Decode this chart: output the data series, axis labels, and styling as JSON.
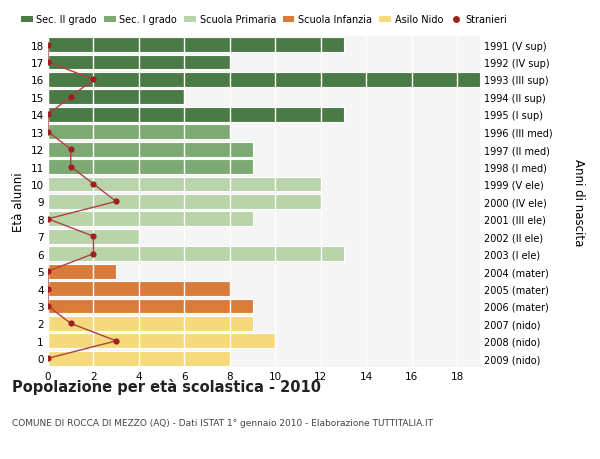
{
  "ages": [
    18,
    17,
    16,
    15,
    14,
    13,
    12,
    11,
    10,
    9,
    8,
    7,
    6,
    5,
    4,
    3,
    2,
    1,
    0
  ],
  "bar_values": [
    13,
    8,
    19,
    6,
    13,
    8,
    9,
    9,
    12,
    12,
    9,
    4,
    13,
    3,
    8,
    9,
    9,
    10,
    8
  ],
  "bar_colors": [
    "#4a7a45",
    "#4a7a45",
    "#4a7a45",
    "#4a7a45",
    "#4a7a45",
    "#7daa72",
    "#7daa72",
    "#7daa72",
    "#b8d4a8",
    "#b8d4a8",
    "#b8d4a8",
    "#b8d4a8",
    "#b8d4a8",
    "#d97c3a",
    "#d97c3a",
    "#d97c3a",
    "#f5d97a",
    "#f5d97a",
    "#f5d97a"
  ],
  "stranieri_values": [
    0,
    0,
    2,
    1,
    0,
    0,
    1,
    1,
    2,
    3,
    0,
    2,
    2,
    0,
    0,
    0,
    1,
    3,
    0
  ],
  "right_labels": [
    "1991 (V sup)",
    "1992 (IV sup)",
    "1993 (III sup)",
    "1994 (II sup)",
    "1995 (I sup)",
    "1996 (III med)",
    "1997 (II med)",
    "1998 (I med)",
    "1999 (V ele)",
    "2000 (IV ele)",
    "2001 (III ele)",
    "2002 (II ele)",
    "2003 (I ele)",
    "2004 (mater)",
    "2005 (mater)",
    "2006 (mater)",
    "2007 (nido)",
    "2008 (nido)",
    "2009 (nido)"
  ],
  "legend_labels": [
    "Sec. II grado",
    "Sec. I grado",
    "Scuola Primaria",
    "Scuola Infanzia",
    "Asilo Nido",
    "Stranieri"
  ],
  "legend_colors": [
    "#4a7a45",
    "#7daa72",
    "#b8d4a8",
    "#d97c3a",
    "#f5d97a",
    "#9e2020"
  ],
  "ylabel": "Età alunni",
  "right_ylabel": "Anni di nascita",
  "title": "Popolazione per età scolastica - 2010",
  "subtitle": "COMUNE DI ROCCA DI MEZZO (AQ) - Dati ISTAT 1° gennaio 2010 - Elaborazione TUTTITALIA.IT",
  "xlim": [
    0,
    19
  ],
  "ylim": [
    -0.5,
    18.5
  ],
  "xticks": [
    0,
    2,
    4,
    6,
    8,
    10,
    12,
    14,
    16,
    18
  ],
  "bg_color": "#f5f5f5",
  "stranieri_color": "#9e2020",
  "stranieri_line_color": "#b04040"
}
